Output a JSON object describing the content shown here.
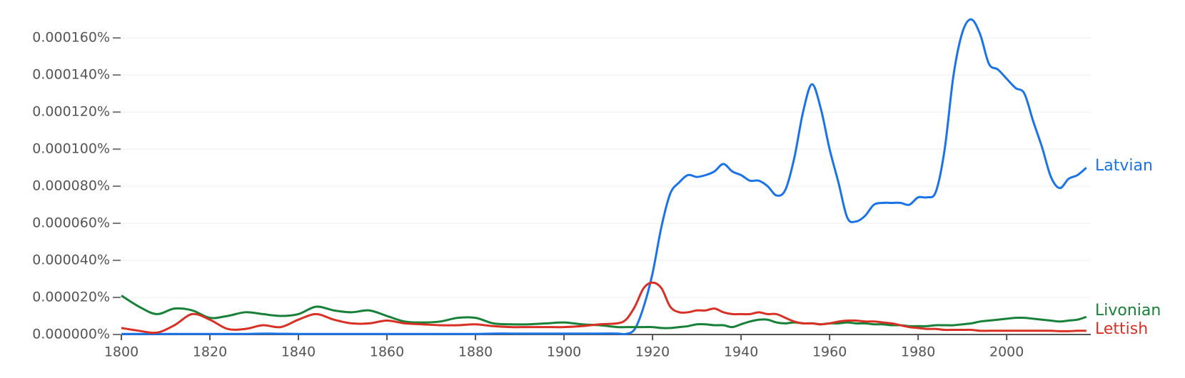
{
  "chart_data": {
    "type": "line",
    "x": [
      1800,
      1804,
      1808,
      1812,
      1816,
      1820,
      1824,
      1828,
      1832,
      1836,
      1840,
      1844,
      1848,
      1852,
      1856,
      1860,
      1864,
      1868,
      1872,
      1876,
      1880,
      1884,
      1888,
      1892,
      1896,
      1900,
      1904,
      1908,
      1912,
      1914,
      1916,
      1918,
      1920,
      1922,
      1924,
      1926,
      1928,
      1930,
      1932,
      1934,
      1936,
      1938,
      1940,
      1942,
      1944,
      1946,
      1948,
      1950,
      1952,
      1954,
      1956,
      1958,
      1960,
      1962,
      1964,
      1966,
      1968,
      1970,
      1972,
      1974,
      1976,
      1978,
      1980,
      1982,
      1984,
      1986,
      1988,
      1990,
      1992,
      1994,
      1996,
      1998,
      2000,
      2002,
      2004,
      2006,
      2008,
      2010,
      2012,
      2014,
      2016,
      2018
    ],
    "series": [
      {
        "name": "Latvian",
        "color": "#1a73e8",
        "values": [
          3e-07,
          3e-07,
          3e-07,
          3e-07,
          3e-07,
          3e-07,
          3e-07,
          3e-07,
          5e-07,
          4e-07,
          3e-07,
          3e-07,
          3e-07,
          3e-07,
          3e-07,
          3e-07,
          3e-07,
          3e-07,
          3e-07,
          3e-07,
          3e-07,
          5e-07,
          5e-07,
          5e-07,
          5e-07,
          5e-07,
          5e-07,
          5e-07,
          5e-07,
          3e-07,
          3e-06,
          1.5e-05,
          3.3e-05,
          5.8e-05,
          7.6e-05,
          8.2e-05,
          8.6e-05,
          8.5e-05,
          8.6e-05,
          8.8e-05,
          9.2e-05,
          8.8e-05,
          8.6e-05,
          8.3e-05,
          8.3e-05,
          8e-05,
          7.5e-05,
          7.8e-05,
          9.5e-05,
          0.00012,
          0.000135,
          0.000122,
          0.0001,
          8.2e-05,
          6.3e-05,
          6.1e-05,
          6.4e-05,
          7e-05,
          7.1e-05,
          7.1e-05,
          7.1e-05,
          7e-05,
          7.4e-05,
          7.4e-05,
          7.7e-05,
          0.0001,
          0.00014,
          0.000163,
          0.00017,
          0.000162,
          0.000146,
          0.000143,
          0.000138,
          0.000133,
          0.00013,
          0.000115,
          0.000101,
          8.5e-05,
          7.9e-05,
          8.4e-05,
          8.6e-05,
          9e-05
        ]
      },
      {
        "name": "Livonian",
        "color": "#188038",
        "values": [
          2.1e-05,
          1.5e-05,
          1.1e-05,
          1.4e-05,
          1.3e-05,
          9e-06,
          1e-05,
          1.2e-05,
          1.1e-05,
          1e-05,
          1.1e-05,
          1.5e-05,
          1.3e-05,
          1.2e-05,
          1.3e-05,
          1e-05,
          7e-06,
          6.5e-06,
          7e-06,
          9e-06,
          9e-06,
          6e-06,
          5.5e-06,
          5.5e-06,
          6e-06,
          6.5e-06,
          5.5e-06,
          5e-06,
          4e-06,
          4e-06,
          4e-06,
          4e-06,
          4e-06,
          3.5e-06,
          3.5e-06,
          4e-06,
          4.5e-06,
          5.5e-06,
          5.5e-06,
          5e-06,
          5e-06,
          4e-06,
          5.5e-06,
          7e-06,
          8e-06,
          8e-06,
          6.5e-06,
          6e-06,
          6.5e-06,
          6e-06,
          6e-06,
          5.5e-06,
          6e-06,
          6e-06,
          6.5e-06,
          6e-06,
          6e-06,
          5.5e-06,
          5.5e-06,
          5e-06,
          5e-06,
          4.5e-06,
          4.5e-06,
          4.5e-06,
          5e-06,
          5e-06,
          5e-06,
          5.5e-06,
          6e-06,
          7e-06,
          7.5e-06,
          8e-06,
          8.5e-06,
          9e-06,
          9e-06,
          8.5e-06,
          8e-06,
          7.5e-06,
          7e-06,
          7.5e-06,
          8e-06,
          9.5e-06
        ]
      },
      {
        "name": "Lettish",
        "color": "#d93025",
        "values": [
          3.5e-06,
          2e-06,
          1e-06,
          5e-06,
          1.1e-05,
          8e-06,
          3e-06,
          3e-06,
          5e-06,
          4e-06,
          8e-06,
          1.1e-05,
          8e-06,
          6e-06,
          6e-06,
          7.5e-06,
          6e-06,
          5.5e-06,
          5e-06,
          5e-06,
          5.5e-06,
          4.5e-06,
          4e-06,
          4e-06,
          4e-06,
          4e-06,
          4.5e-06,
          5.5e-06,
          6e-06,
          8e-06,
          1.5e-05,
          2.5e-05,
          2.8e-05,
          2.5e-05,
          1.5e-05,
          1.2e-05,
          1.2e-05,
          1.3e-05,
          1.3e-05,
          1.4e-05,
          1.2e-05,
          1.1e-05,
          1.1e-05,
          1.1e-05,
          1.2e-05,
          1.1e-05,
          1.1e-05,
          9e-06,
          7e-06,
          6e-06,
          6e-06,
          5.5e-06,
          6e-06,
          7e-06,
          7.5e-06,
          7.5e-06,
          7e-06,
          7e-06,
          6.5e-06,
          6e-06,
          5e-06,
          4e-06,
          3.5e-06,
          3e-06,
          3e-06,
          2.5e-06,
          2.5e-06,
          2.5e-06,
          2.5e-06,
          2e-06,
          2e-06,
          2e-06,
          2e-06,
          2e-06,
          2e-06,
          2e-06,
          2e-06,
          2e-06,
          1.8e-06,
          1.8e-06,
          2e-06,
          2e-06
        ]
      }
    ],
    "xlim": [
      1800,
      2019
    ],
    "xticks": [
      1800,
      1820,
      1840,
      1860,
      1880,
      1900,
      1920,
      1940,
      1960,
      1980,
      2000
    ],
    "ylim": [
      0,
      0.000172
    ],
    "yticks": [
      {
        "value": 0,
        "label": "0.000000%"
      },
      {
        "value": 2e-05,
        "label": "0.000020%"
      },
      {
        "value": 4e-05,
        "label": "0.000040%"
      },
      {
        "value": 6e-05,
        "label": "0.000060%"
      },
      {
        "value": 8e-05,
        "label": "0.000080%"
      },
      {
        "value": 0.0001,
        "label": "0.000100%"
      },
      {
        "value": 0.00012,
        "label": "0.000120%"
      },
      {
        "value": 0.00014,
        "label": "0.000140%"
      },
      {
        "value": 0.00016,
        "label": "0.000160%"
      }
    ],
    "grid": true
  }
}
